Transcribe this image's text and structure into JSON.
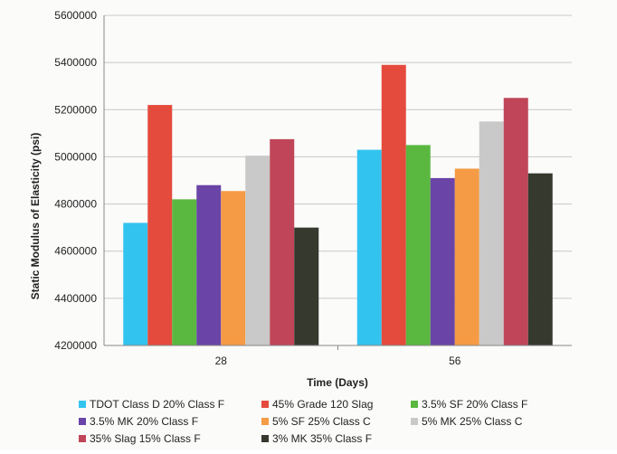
{
  "chart_data": {
    "type": "bar",
    "title": "",
    "xlabel": "Time (Days)",
    "ylabel": "Static Modulus of Elasticity (psi)",
    "ylim": [
      4200000,
      5600000
    ],
    "yticks": [
      4200000,
      4400000,
      4600000,
      4800000,
      5000000,
      5200000,
      5400000,
      5600000
    ],
    "grid": true,
    "legend_position": "bottom",
    "categories": [
      "28",
      "56"
    ],
    "series": [
      {
        "name": "TDOT Class D 20% Class F",
        "color": "#33c3ef",
        "values": [
          4720000,
          5030000
        ]
      },
      {
        "name": "45% Grade 120 Slag",
        "color": "#e54b3c",
        "values": [
          5220000,
          5390000
        ]
      },
      {
        "name": "3.5% SF 20% Class F",
        "color": "#5ab840",
        "values": [
          4820000,
          5050000
        ]
      },
      {
        "name": "3.5% MK 20% Class F",
        "color": "#6a44a6",
        "values": [
          4880000,
          4910000
        ]
      },
      {
        "name": "5% SF 25% Class C",
        "color": "#f59b45",
        "values": [
          4855000,
          4950000
        ]
      },
      {
        "name": "5% MK 25% Class C",
        "color": "#c9c9c9",
        "values": [
          5005000,
          5150000
        ]
      },
      {
        "name": "35% Slag 15% Class F",
        "color": "#c04558",
        "values": [
          5075000,
          5250000
        ]
      },
      {
        "name": "3% MK 35% Class F",
        "color": "#35392e",
        "values": [
          4700000,
          4930000
        ]
      }
    ]
  }
}
